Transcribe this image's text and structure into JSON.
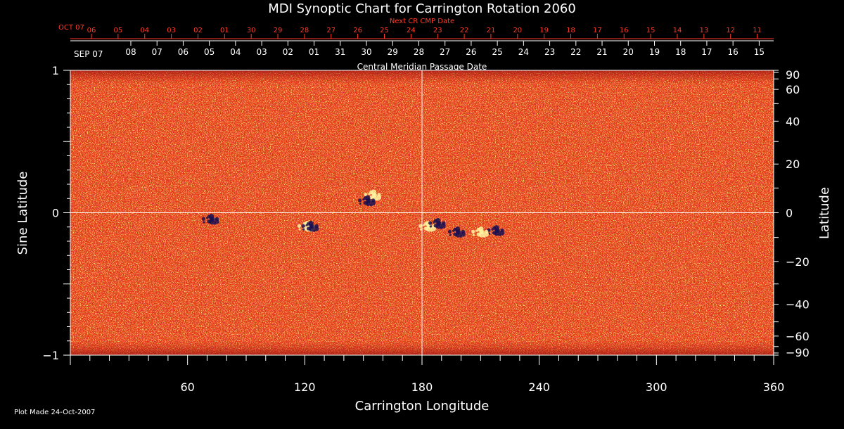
{
  "chart_data": {
    "type": "heatmap",
    "title": "MDI Synoptic Chart for Carrington Rotation 2060",
    "xlabel": "Carrington Longitude",
    "ylabel_left": "Sine Latitude",
    "ylabel_right": "Latitude",
    "xlim": [
      0,
      360
    ],
    "ylim": [
      -1,
      1
    ],
    "x_ticks": [
      60,
      120,
      180,
      240,
      300,
      360
    ],
    "y_ticks_left": [
      "1",
      "0",
      "−1"
    ],
    "y_ticks_right": [
      "90",
      "60",
      "40",
      "20",
      "0",
      "−20",
      "−40",
      "−60",
      "−90"
    ],
    "y_ticks_right_values": [
      90,
      60,
      40,
      20,
      0,
      -20,
      -40,
      -60,
      -90
    ],
    "top_axis_label": "Central Meridian Passage Date",
    "top_axis_start_label": "SEP 07",
    "top_axis_dates": [
      "08",
      "07",
      "06",
      "05",
      "04",
      "03",
      "02",
      "01",
      "31",
      "30",
      "29",
      "28",
      "27",
      "26",
      "25",
      "24",
      "23",
      "22",
      "21",
      "20",
      "19",
      "18",
      "17",
      "16",
      "15"
    ],
    "next_cr_label": "Next CR CMP Date",
    "next_cr_start_label": "OCT 07",
    "next_cr_dates": [
      "06",
      "05",
      "04",
      "03",
      "02",
      "01",
      "30",
      "29",
      "28",
      "27",
      "26",
      "25",
      "24",
      "23",
      "22",
      "21",
      "20",
      "19",
      "18",
      "17",
      "16",
      "15",
      "14",
      "13",
      "12",
      "11"
    ],
    "reference_lines": {
      "x": 180,
      "y": 0
    },
    "colors": {
      "background": "#e8411a",
      "positive": "#fff3a0",
      "negative": "#1a1050",
      "axis": "#ffffff",
      "next_cr": "#ff3b2a"
    },
    "active_regions": [
      {
        "lon": 155,
        "sinlat": 0.12,
        "polarity": "positive"
      },
      {
        "lon": 152,
        "sinlat": 0.08,
        "polarity": "negative"
      },
      {
        "lon": 72,
        "sinlat": -0.05,
        "polarity": "negative"
      },
      {
        "lon": 121,
        "sinlat": -0.1,
        "polarity": "positive"
      },
      {
        "lon": 123,
        "sinlat": -0.1,
        "polarity": "negative"
      },
      {
        "lon": 183,
        "sinlat": -0.1,
        "polarity": "positive"
      },
      {
        "lon": 188,
        "sinlat": -0.08,
        "polarity": "negative"
      },
      {
        "lon": 198,
        "sinlat": -0.14,
        "polarity": "negative"
      },
      {
        "lon": 218,
        "sinlat": -0.13,
        "polarity": "negative"
      },
      {
        "lon": 210,
        "sinlat": -0.14,
        "polarity": "positive"
      }
    ]
  },
  "footer": {
    "plot_made": "Plot Made 24-Oct-2007"
  }
}
